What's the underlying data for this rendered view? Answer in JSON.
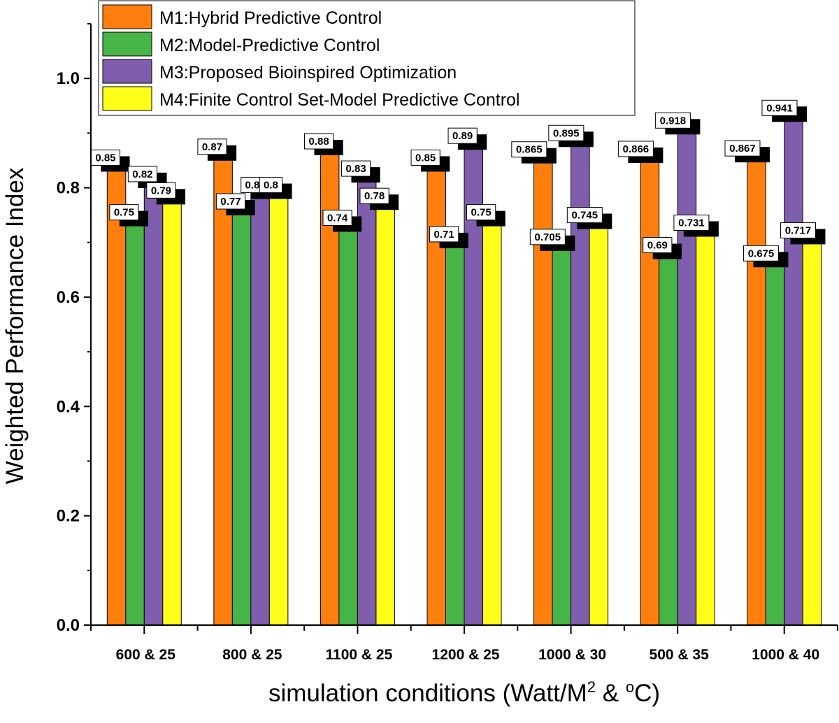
{
  "chart_data": {
    "type": "bar",
    "title": "",
    "xlabel": "simulation conditions (Watt/M",
    "xlabel_sup1": "2",
    "xlabel_mid": " & ",
    "xlabel_sup2": "o",
    "xlabel_end": "C)",
    "ylabel": "Weighted Performance Index",
    "ylim": [
      0,
      1.1
    ],
    "yticks": [
      "0.0",
      "0.2",
      "0.4",
      "0.6",
      "0.8",
      "1.0"
    ],
    "legend_position": "top",
    "categories": [
      "600 & 25",
      "800 & 25",
      "1100 & 25",
      "1200 & 25",
      "1000 & 30",
      "500 & 35",
      "1000 & 40"
    ],
    "series": [
      {
        "name": "M1:Hybrid Predictive Control",
        "color": "#ff7f0e",
        "values": [
          0.85,
          0.87,
          0.88,
          0.85,
          0.865,
          0.866,
          0.867
        ],
        "labels": [
          "0.85",
          "0.87",
          "0.88",
          "0.85",
          "0.865",
          "0.866",
          "0.867"
        ]
      },
      {
        "name": "M2:Model-Predictive Control",
        "color": "#46b446",
        "values": [
          0.75,
          0.77,
          0.74,
          0.71,
          0.705,
          0.69,
          0.675
        ],
        "labels": [
          "0.75",
          "0.77",
          "0.74",
          "0.71",
          "0.705",
          "0.69",
          "0.675"
        ]
      },
      {
        "name": "M3:Proposed Bioinspired Optimization",
        "color": "#7f5fad",
        "values": [
          0.82,
          0.8,
          0.83,
          0.89,
          0.895,
          0.918,
          0.941
        ],
        "labels": [
          "0.82",
          "0.8",
          "0.83",
          "0.89",
          "0.895",
          "0.918",
          "0.941"
        ]
      },
      {
        "name": "M4:Finite Control Set-Model Predictive Control",
        "color": "#ffff1a",
        "values": [
          0.79,
          0.8,
          0.78,
          0.75,
          0.745,
          0.731,
          0.717
        ],
        "labels": [
          "0.79",
          "0.8",
          "0.78",
          "0.75",
          "0.745",
          "0.731",
          "0.717"
        ]
      }
    ]
  }
}
